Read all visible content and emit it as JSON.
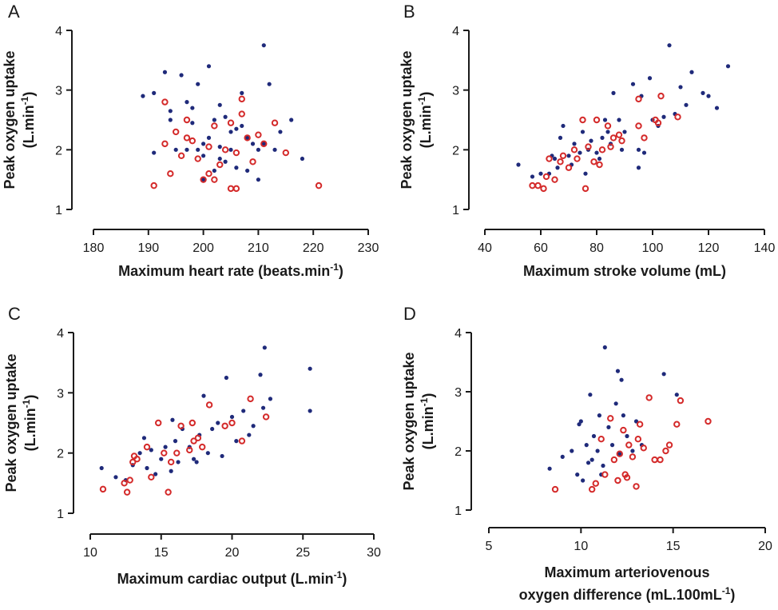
{
  "chart_data": [
    {
      "type": "scatter",
      "panel_label": "A",
      "xlabel": [
        [
          "Maximum heart rate (beats.min",
          "-1",
          ")"
        ]
      ],
      "ylabel": [
        "Peak oxygen uptake",
        [
          "(L.min",
          "-1",
          ")"
        ]
      ],
      "xlim": [
        180,
        230
      ],
      "xticks": [
        180,
        190,
        200,
        210,
        220,
        230
      ],
      "ylim": [
        1,
        4
      ],
      "yticks": [
        1,
        2,
        3,
        4
      ],
      "series": [
        {
          "color": "#1f2a7a",
          "marker": "dot",
          "x": [
            189,
            191,
            191,
            193,
            194,
            194,
            195,
            196,
            197,
            198,
            198,
            199,
            199,
            200,
            200,
            201,
            201,
            202,
            202,
            203,
            203,
            204,
            204,
            205,
            205,
            206,
            206,
            207,
            207,
            208,
            208,
            209,
            210,
            210,
            211,
            211,
            212,
            213,
            214,
            216,
            218,
            200,
            197,
            203
          ],
          "values": [
            2.9,
            2.95,
            1.95,
            3.3,
            2.65,
            2.5,
            2.0,
            3.25,
            2.8,
            2.7,
            2.45,
            3.1,
            2.0,
            2.1,
            1.9,
            3.4,
            2.2,
            2.5,
            1.65,
            2.05,
            1.85,
            2.55,
            1.8,
            2.3,
            2.0,
            2.35,
            1.7,
            2.95,
            2.4,
            2.2,
            1.65,
            2.1,
            2.0,
            1.5,
            3.75,
            2.1,
            3.1,
            2.0,
            2.3,
            2.5,
            1.85,
            1.5,
            2.0,
            2.75
          ]
        },
        {
          "color": "#d42a2a",
          "marker": "ring",
          "x": [
            191,
            193,
            193,
            194,
            195,
            196,
            197,
            198,
            199,
            200,
            201,
            201,
            202,
            203,
            204,
            205,
            205,
            206,
            206,
            207,
            207,
            208,
            209,
            210,
            211,
            213,
            215,
            221,
            197,
            202
          ],
          "values": [
            1.4,
            2.8,
            2.1,
            1.6,
            2.3,
            1.9,
            2.5,
            2.15,
            1.85,
            1.5,
            1.6,
            2.05,
            2.4,
            1.75,
            2.0,
            2.45,
            1.35,
            1.35,
            1.95,
            2.6,
            2.85,
            2.2,
            1.8,
            2.25,
            2.1,
            2.45,
            1.95,
            1.4,
            2.2,
            1.5
          ]
        }
      ]
    },
    {
      "type": "scatter",
      "panel_label": "B",
      "xlabel": [
        "Maximum stroke volume (mL)"
      ],
      "ylabel": [
        "Peak oxygen uptake",
        [
          "(L.min",
          "-1",
          ")"
        ]
      ],
      "xlim": [
        40,
        140
      ],
      "xticks": [
        40,
        60,
        80,
        100,
        120,
        140
      ],
      "ylim": [
        1,
        4
      ],
      "yticks": [
        1,
        2,
        3,
        4
      ],
      "series": [
        {
          "color": "#1f2a7a",
          "marker": "dot",
          "x": [
            52,
            57,
            60,
            63,
            64,
            65,
            66,
            67,
            68,
            70,
            71,
            72,
            74,
            75,
            76,
            77,
            78,
            80,
            81,
            82,
            83,
            84,
            85,
            86,
            88,
            89,
            90,
            93,
            95,
            95,
            96,
            97,
            99,
            100,
            102,
            104,
            106,
            108,
            110,
            112,
            114,
            118,
            120,
            123,
            127
          ],
          "values": [
            1.75,
            1.55,
            1.6,
            1.6,
            1.9,
            1.85,
            1.7,
            2.2,
            2.4,
            1.9,
            1.75,
            2.1,
            1.95,
            2.3,
            1.6,
            2.0,
            2.15,
            1.95,
            1.85,
            2.2,
            2.5,
            2.3,
            2.1,
            2.95,
            2.5,
            2.0,
            2.3,
            3.1,
            1.7,
            2.0,
            2.9,
            1.95,
            3.2,
            2.5,
            2.4,
            2.55,
            3.75,
            2.6,
            3.05,
            2.75,
            3.3,
            2.95,
            2.9,
            2.7,
            3.4
          ]
        },
        {
          "color": "#d42a2a",
          "marker": "ring",
          "x": [
            57,
            59,
            61,
            62,
            63,
            65,
            67,
            68,
            70,
            72,
            73,
            75,
            76,
            77,
            79,
            80,
            81,
            82,
            84,
            85,
            86,
            88,
            89,
            95,
            95,
            97,
            101,
            102,
            103,
            109
          ],
          "values": [
            1.4,
            1.4,
            1.35,
            1.55,
            1.85,
            1.5,
            1.8,
            1.9,
            1.7,
            2.0,
            1.85,
            2.5,
            1.35,
            2.05,
            1.8,
            2.5,
            1.75,
            2.0,
            2.4,
            2.05,
            2.2,
            2.25,
            2.15,
            2.4,
            2.85,
            2.2,
            2.5,
            2.45,
            2.9,
            2.55
          ]
        }
      ]
    },
    {
      "type": "scatter",
      "panel_label": "C",
      "xlabel": [
        [
          "Maximum cardiac output (L.min",
          "-1",
          ")"
        ]
      ],
      "ylabel": [
        "Peak oxygen uptake",
        [
          "(L.min",
          "-1",
          ")"
        ]
      ],
      "xlim": [
        10,
        30
      ],
      "xticks": [
        10,
        15,
        20,
        25,
        30
      ],
      "ylim": [
        1,
        4
      ],
      "yticks": [
        1,
        2,
        3,
        4
      ],
      "series": [
        {
          "color": "#1f2a7a",
          "marker": "dot",
          "x": [
            10.8,
            11.8,
            12.5,
            13,
            13.5,
            13.8,
            14,
            14.3,
            14.6,
            15,
            15.3,
            15.7,
            16,
            16.2,
            16.5,
            17,
            17.3,
            17.7,
            18,
            18.3,
            18.6,
            19,
            19.3,
            19.6,
            20,
            20.3,
            20.8,
            21.2,
            21.5,
            22,
            22.2,
            22.3,
            22.7,
            25.5,
            25.5,
            17.5,
            15.8
          ],
          "values": [
            1.75,
            1.6,
            1.55,
            1.8,
            2.0,
            2.25,
            1.75,
            2.05,
            1.65,
            1.9,
            2.1,
            1.7,
            2.2,
            1.85,
            2.4,
            2.1,
            1.9,
            2.3,
            2.95,
            2.0,
            2.4,
            2.5,
            1.95,
            3.25,
            2.6,
            2.2,
            2.7,
            2.3,
            2.45,
            3.3,
            2.75,
            3.75,
            2.9,
            3.4,
            2.7,
            1.85,
            2.55
          ]
        },
        {
          "color": "#d42a2a",
          "marker": "ring",
          "x": [
            10.9,
            12.4,
            12.6,
            12.8,
            13.0,
            13.1,
            13.3,
            14.0,
            14.3,
            14.8,
            15.2,
            15.5,
            15.7,
            16.1,
            16.4,
            17,
            17.3,
            17.6,
            17.9,
            18.4,
            19.5,
            20,
            20.7,
            21.3,
            22.4,
            17.2
          ],
          "values": [
            1.4,
            1.5,
            1.35,
            1.55,
            1.85,
            1.95,
            1.9,
            2.1,
            1.6,
            2.5,
            2.0,
            1.35,
            1.85,
            2.0,
            2.45,
            2.05,
            2.2,
            2.25,
            2.1,
            2.8,
            2.45,
            2.5,
            2.2,
            2.9,
            2.6,
            2.5
          ]
        }
      ]
    },
    {
      "type": "scatter",
      "panel_label": "D",
      "xlabel": [
        "Maximum arteriovenous",
        [
          "oxygen difference (mL.100mL",
          "-1",
          ")"
        ]
      ],
      "ylabel": [
        "Peak oxygen uptake",
        [
          "(L.min",
          "-1",
          ")"
        ]
      ],
      "xlim": [
        5,
        20
      ],
      "xticks": [
        5,
        10,
        15,
        20
      ],
      "ylim": [
        1,
        4
      ],
      "yticks": [
        1,
        2,
        3,
        4
      ],
      "series": [
        {
          "color": "#1f2a7a",
          "marker": "dot",
          "x": [
            8.3,
            9,
            9.5,
            9.8,
            10,
            10.1,
            10.3,
            10.5,
            10.6,
            10.7,
            10.9,
            11,
            11.2,
            11.3,
            11.5,
            11.7,
            11.9,
            12.0,
            12.1,
            12.2,
            12.5,
            12.8,
            13.0,
            13.3,
            14.5,
            15.2,
            9.9,
            11.1,
            10.4,
            12.3
          ],
          "values": [
            1.7,
            1.9,
            2.0,
            1.6,
            2.5,
            1.5,
            2.1,
            2.95,
            1.85,
            2.25,
            2.0,
            2.6,
            1.75,
            3.75,
            2.4,
            2.1,
            2.8,
            3.35,
            1.95,
            3.2,
            2.25,
            2.0,
            2.5,
            2.1,
            3.3,
            2.95,
            2.45,
            1.6,
            1.8,
            2.6
          ]
        },
        {
          "color": "#d42a2a",
          "marker": "ring",
          "x": [
            8.6,
            10.6,
            10.8,
            11.1,
            11.3,
            11.6,
            11.8,
            12,
            12.1,
            12.3,
            12.4,
            12.6,
            12.8,
            13.0,
            13.1,
            13.2,
            13.4,
            13.7,
            14,
            14.3,
            14.6,
            14.8,
            15.2,
            15.4,
            16.9,
            12.5
          ],
          "values": [
            1.35,
            1.35,
            1.45,
            2.2,
            1.6,
            2.55,
            1.85,
            1.5,
            1.95,
            2.35,
            1.6,
            2.1,
            1.9,
            1.4,
            2.2,
            2.45,
            2.05,
            2.9,
            1.85,
            1.85,
            2.0,
            2.1,
            2.45,
            2.85,
            2.5,
            1.55
          ]
        }
      ]
    }
  ]
}
